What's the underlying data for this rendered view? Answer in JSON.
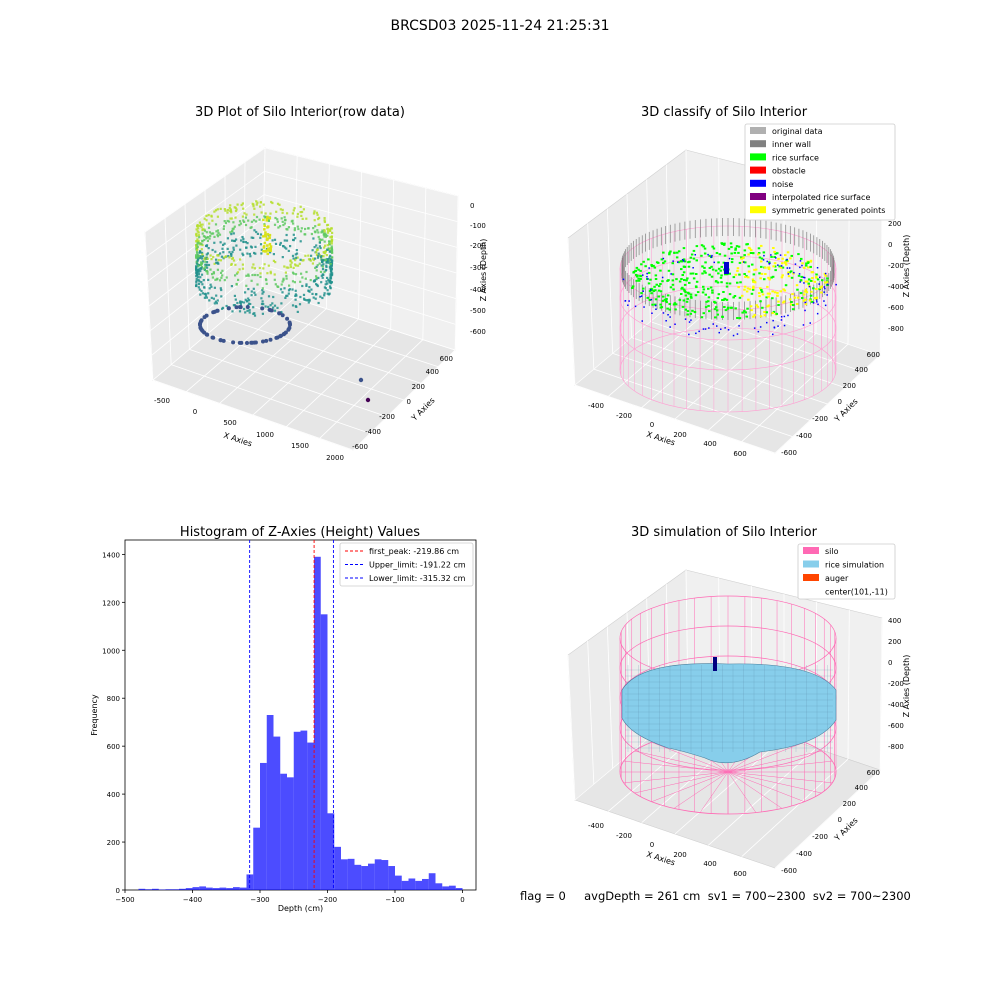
{
  "figure": {
    "title": "BRCSD03 2025-11-24 21:25:31",
    "footer": "flag = 0     avgDepth = 261 cm  sv1 = 700~2300  sv2 = 700~2300"
  },
  "chart_data": [
    {
      "type": "scatter",
      "title": "3D Plot of Silo Interior(row data)",
      "xlabel": "X Axies",
      "ylabel": "Y Axies",
      "zlabel": "Z Axies (Depth)",
      "x_ticks": [
        "-500",
        "0",
        "500",
        "1000",
        "1500",
        "2000"
      ],
      "y_ticks": [
        "-600",
        "-400",
        "-200",
        "0",
        "200",
        "400",
        "600"
      ],
      "z_ticks": [
        "0",
        "-100",
        "-200",
        "-300",
        "-400",
        "-500",
        "-600"
      ],
      "xlim": [
        -600,
        2000
      ],
      "ylim": [
        -650,
        650
      ],
      "zlim": [
        -620,
        20
      ],
      "colormap": "viridis",
      "grid": true
    },
    {
      "type": "scatter",
      "title": "3D classify of Silo Interior",
      "xlabel": "X Axies",
      "ylabel": "Y Axies",
      "zlabel": "Z Axies (Depth)",
      "x_ticks": [
        "-400",
        "-200",
        "0",
        "200",
        "400",
        "600"
      ],
      "y_ticks": [
        "-600",
        "-400",
        "-200",
        "0",
        "200",
        "400",
        "600"
      ],
      "z_ticks": [
        "200",
        "0",
        "-200",
        "-400",
        "-600",
        "-800"
      ],
      "xlim": [
        -500,
        650
      ],
      "ylim": [
        -650,
        650
      ],
      "zlim": [
        -900,
        300
      ],
      "legend_position": "upper right",
      "legend": [
        {
          "label": "original data",
          "color": "#b0b0b0"
        },
        {
          "label": "inner wall",
          "color": "#808080"
        },
        {
          "label": "rice surface",
          "color": "#00ff00"
        },
        {
          "label": "obstacle",
          "color": "#ff0000"
        },
        {
          "label": "noise",
          "color": "#0000ff"
        },
        {
          "label": "interpolated rice surface",
          "color": "#800080"
        },
        {
          "label": "symmetric generated points",
          "color": "#ffff00"
        }
      ],
      "grid": true
    },
    {
      "type": "bar",
      "title": "Histogram of Z-Axies (Height) Values",
      "xlabel": "Depth (cm)",
      "ylabel": "Frequency",
      "xlim": [
        -500,
        20
      ],
      "ylim": [
        0,
        1460
      ],
      "x_ticks": [
        -500,
        -400,
        -300,
        -200,
        -100,
        0
      ],
      "y_ticks": [
        0,
        200,
        400,
        600,
        800,
        1000,
        1200,
        1400
      ],
      "bin_width": 10,
      "bin_starts": [
        -480,
        -470,
        -460,
        -450,
        -440,
        -430,
        -420,
        -410,
        -400,
        -390,
        -380,
        -370,
        -360,
        -350,
        -340,
        -330,
        -320,
        -310,
        -300,
        -290,
        -280,
        -270,
        -260,
        -250,
        -240,
        -230,
        -220,
        -210,
        -200,
        -190,
        -180,
        -170,
        -160,
        -150,
        -140,
        -130,
        -120,
        -110,
        -100,
        -90,
        -80,
        -70,
        -60,
        -50,
        -40,
        -30,
        -20,
        -10
      ],
      "values": [
        5,
        3,
        5,
        2,
        3,
        3,
        5,
        8,
        12,
        15,
        10,
        8,
        10,
        8,
        12,
        10,
        65,
        260,
        530,
        730,
        640,
        485,
        470,
        660,
        665,
        615,
        1390,
        1150,
        320,
        180,
        128,
        130,
        105,
        100,
        110,
        128,
        125,
        100,
        60,
        38,
        48,
        38,
        46,
        70,
        28,
        15,
        18,
        8
      ],
      "bar_color": "#0000ff",
      "bar_alpha": 0.7,
      "vlines": [
        {
          "x": -219.86,
          "color": "#ff0000"
        },
        {
          "x": -191.22,
          "color": "#0000ff"
        },
        {
          "x": -315.32,
          "color": "#0000ff"
        }
      ],
      "legend_position": "upper right",
      "legend": [
        {
          "label": "first_peak: -219.86 cm",
          "color": "#ff0000"
        },
        {
          "label": "Upper_limit: -191.22 cm",
          "color": "#0000ff"
        },
        {
          "label": "Lower_limit: -315.32 cm",
          "color": "#0000ff"
        }
      ],
      "grid": false
    },
    {
      "type": "area",
      "title": "3D simulation of Silo Interior",
      "xlabel": "X Axies",
      "ylabel": "Y Axies",
      "zlabel": "Z Axies (Depth)",
      "x_ticks": [
        "-400",
        "-200",
        "0",
        "200",
        "400",
        "600"
      ],
      "y_ticks": [
        "-600",
        "-400",
        "-200",
        "0",
        "200",
        "400",
        "600"
      ],
      "z_ticks": [
        "400",
        "200",
        "0",
        "-200",
        "-400",
        "-600",
        "-800"
      ],
      "xlim": [
        -500,
        650
      ],
      "ylim": [
        -650,
        650
      ],
      "zlim": [
        -900,
        450
      ],
      "legend_position": "upper right",
      "legend": [
        {
          "label": "silo",
          "color": "#ff69b4"
        },
        {
          "label": "rice simulation",
          "color": "#87ceeb"
        },
        {
          "label": "auger",
          "color": "#ff4500"
        },
        {
          "label": "center(101,-11)",
          "color": ""
        }
      ],
      "grid": true
    }
  ]
}
